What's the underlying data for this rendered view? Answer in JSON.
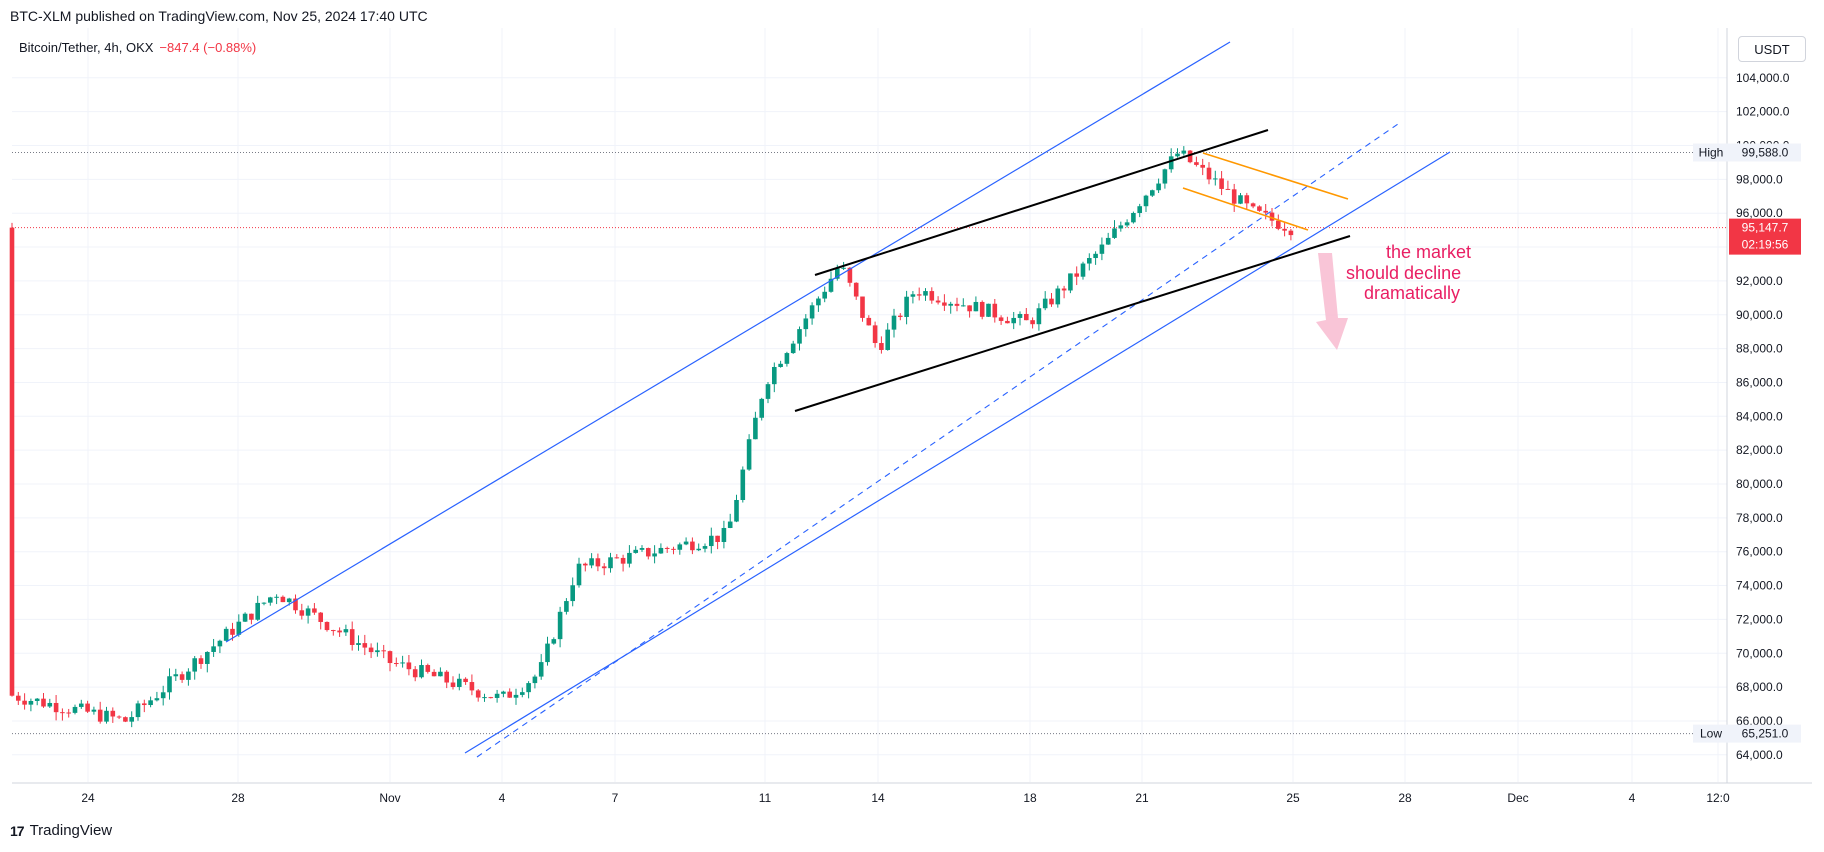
{
  "header": {
    "published_text": "BTC-XLM published on TradingView.com, Nov 25, 2024 17:40 UTC"
  },
  "symbol": {
    "name": "Bitcoin/Tether, 4h, OKX",
    "change": "−847.4 (−0.88%)"
  },
  "currency_button": "USDT",
  "footer": {
    "brand": "TradingView",
    "logo_glyph": "17"
  },
  "colors": {
    "up": "#089981",
    "down": "#f23645",
    "channel": "#2962ff",
    "wedge": "#000000",
    "flag": "#ff9800",
    "annotation": "#e91e63"
  },
  "price_tags": {
    "high": {
      "label": "High",
      "value": "99,588.0"
    },
    "low": {
      "label": "Low",
      "value": "65,251.0"
    },
    "last": {
      "value": "95,147.7",
      "countdown": "02:19:56"
    }
  },
  "annotation": {
    "lines": [
      "the market",
      "should decline",
      "dramatically"
    ]
  },
  "chart_data": {
    "type": "candlestick",
    "symbol": "Bitcoin/Tether",
    "interval": "4h",
    "ylim": [
      63000,
      105500
    ],
    "y_ticks": [
      "64,000.0",
      "66,000.0",
      "68,000.0",
      "70,000.0",
      "72,000.0",
      "74,000.0",
      "76,000.0",
      "78,000.0",
      "80,000.0",
      "82,000.0",
      "84,000.0",
      "86,000.0",
      "88,000.0",
      "90,000.0",
      "92,000.0",
      "94,000.0",
      "96,000.0",
      "98,000.0",
      "100,000.0",
      "102,000.0",
      "104,000.0"
    ],
    "x_ticks": [
      "24",
      "28",
      "Nov",
      "4",
      "7",
      "11",
      "14",
      "18",
      "21",
      "25",
      "28",
      "Dec",
      "4",
      "12:0"
    ],
    "high": 99588.0,
    "low": 65251.0,
    "last": 95147.7,
    "key_points": [
      {
        "date": "Oct 22",
        "price": 67500
      },
      {
        "date": "Oct 25",
        "price": 66000
      },
      {
        "date": "Oct 29",
        "price": 73600
      },
      {
        "date": "Nov 1",
        "price": 69500
      },
      {
        "date": "Nov 4",
        "price": 67300
      },
      {
        "date": "Nov 5",
        "price": 68800
      },
      {
        "date": "Nov 6",
        "price": 75000
      },
      {
        "date": "Nov 10",
        "price": 77000
      },
      {
        "date": "Nov 11",
        "price": 86000
      },
      {
        "date": "Nov 13",
        "price": 93000
      },
      {
        "date": "Nov 14",
        "price": 88000
      },
      {
        "date": "Nov 15",
        "price": 91500
      },
      {
        "date": "Nov 18",
        "price": 89500
      },
      {
        "date": "Nov 20",
        "price": 94000
      },
      {
        "date": "Nov 22",
        "price": 99588
      },
      {
        "date": "Nov 24",
        "price": 96000
      },
      {
        "date": "Nov 25",
        "price": 95147.7
      }
    ]
  }
}
